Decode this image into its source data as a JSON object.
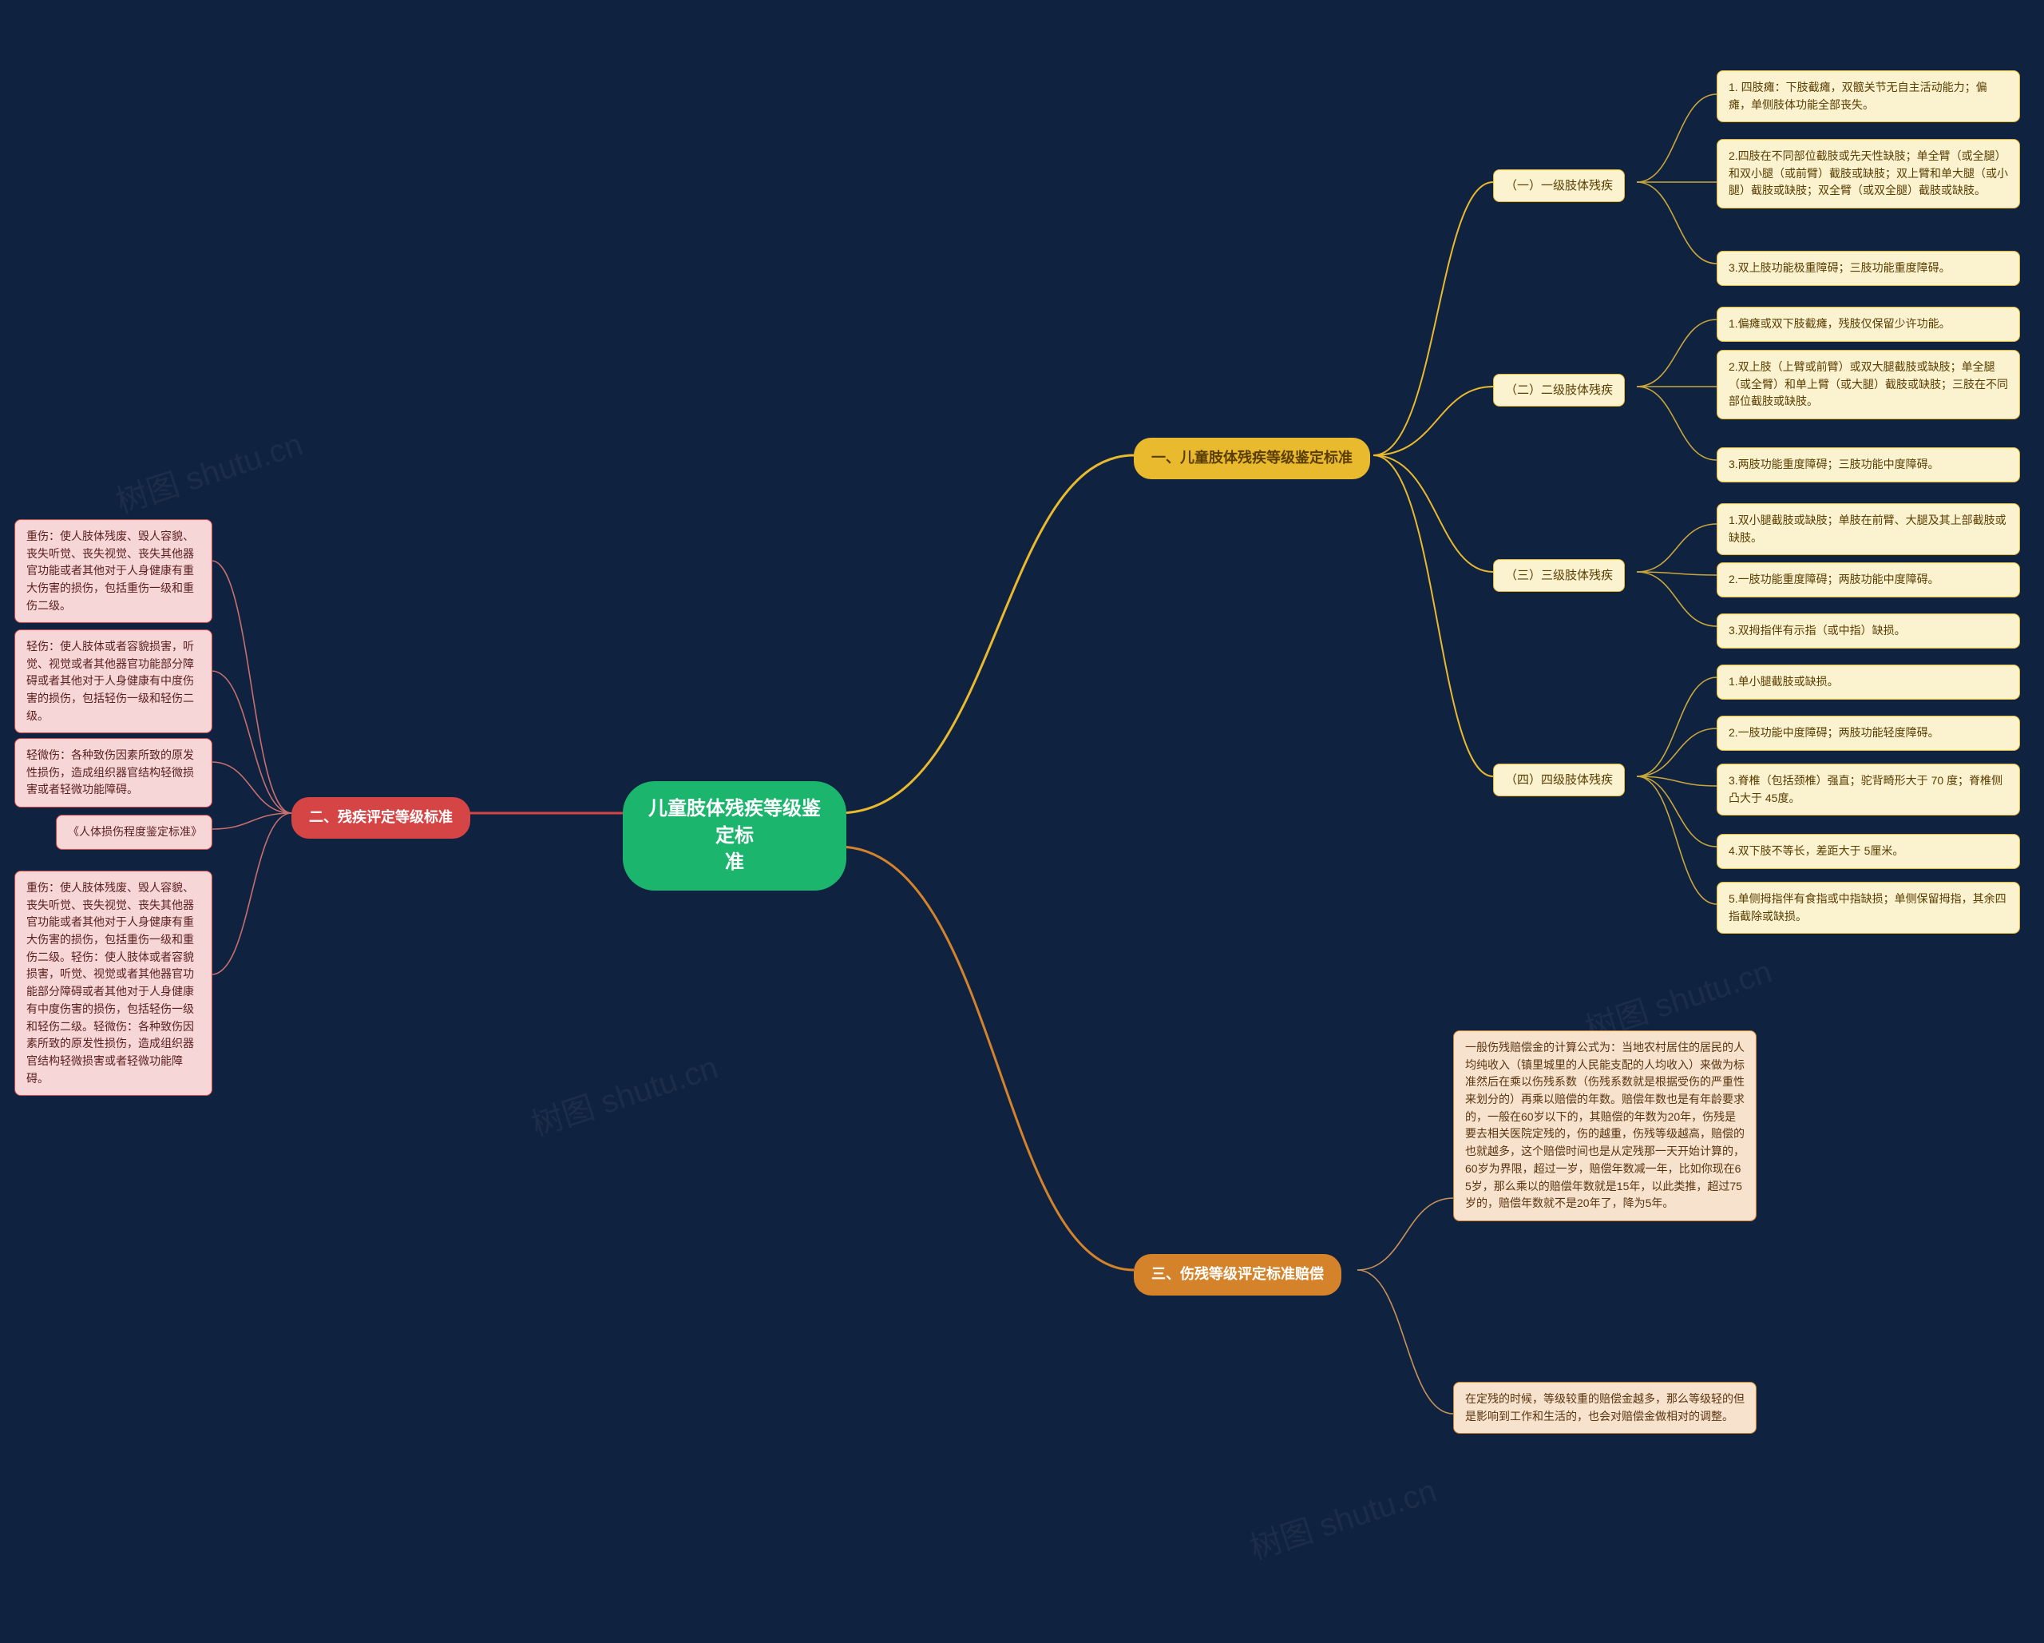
{
  "colors": {
    "background": "#0f2240",
    "root_bg": "#1bb56e",
    "root_text": "#ffffff",
    "sec1_bg": "#e9b92e",
    "sec1_text": "#5a3e00",
    "sec1_leaf_bg": "#fbf2d0",
    "sec1_leaf_border": "#e9b92e",
    "sec2_bg": "#d64545",
    "sec2_text": "#ffffff",
    "sec2_leaf_bg": "#f6d6d6",
    "sec2_leaf_border": "#d64545",
    "sec2_leaf_text": "#5a1f1f",
    "sec3_bg": "#d4832a",
    "sec3_text": "#ffffff",
    "sec3_leaf_bg": "#f7e3cd",
    "sec3_leaf_border": "#d4832a",
    "sec3_leaf_text": "#5a3410",
    "edge_yellow": "#e9b92e",
    "edge_red": "#d64545",
    "edge_orange": "#d4832a",
    "edge_leaf": "#c9a73a",
    "edge_leaf_red": "#c76f6f",
    "edge_leaf_orange": "#c99259"
  },
  "root": {
    "text": "儿童肢体残疾等级鉴定标\n准"
  },
  "sec1": {
    "title": "一、儿童肢体残疾等级鉴定标准",
    "g1": {
      "title": "（一）一级肢体残疾",
      "items": [
        "1. 四肢瘫：下肢截瘫，双髋关节无自主活动能力；偏瘫，单侧肢体功能全部丧失。",
        "2.四肢在不同部位截肢或先天性缺肢；单全臂（或全腿）和双小腿（或前臂）截肢或缺肢；双上臂和单大腿（或小腿）截肢或缺肢；双全臂（或双全腿）截肢或缺肢。",
        "3.双上肢功能极重障碍；三肢功能重度障碍。"
      ]
    },
    "g2": {
      "title": "（二）二级肢体残疾",
      "items": [
        "1.偏瘫或双下肢截瘫，残肢仅保留少许功能。",
        "2.双上肢（上臂或前臂）或双大腿截肢或缺肢；单全腿（或全臂）和单上臂（或大腿）截肢或缺肢；三肢在不同部位截肢或缺肢。",
        "3.两肢功能重度障碍；三肢功能中度障碍。"
      ]
    },
    "g3": {
      "title": "（三）三级肢体残疾",
      "items": [
        "1.双小腿截肢或缺肢；单肢在前臂、大腿及其上部截肢或缺肢。",
        "2.一肢功能重度障碍；两肢功能中度障碍。",
        "3.双拇指伴有示指（或中指）缺损。"
      ]
    },
    "g4": {
      "title": "（四）四级肢体残疾",
      "items": [
        "1.单小腿截肢或缺损。",
        "2.一肢功能中度障碍；两肢功能轻度障碍。",
        "3.脊椎（包括颈椎）强直；驼背畸形大于 70 度；脊椎侧凸大于 45度。",
        "4.双下肢不等长，差距大于 5厘米。",
        "5.单侧拇指伴有食指或中指缺损；单侧保留拇指，其余四指截除或缺损。"
      ]
    }
  },
  "sec2": {
    "title": "二、残疾评定等级标准",
    "items": [
      "重伤：使人肢体残废、毁人容貌、丧失听觉、丧失视觉、丧失其他器官功能或者其他对于人身健康有重大伤害的损伤，包括重伤一级和重伤二级。",
      "轻伤：使人肢体或者容貌损害，听觉、视觉或者其他器官功能部分障碍或者其他对于人身健康有中度伤害的损伤，包括轻伤一级和轻伤二级。",
      "轻微伤：各种致伤因素所致的原发性损伤，造成组织器官结构轻微损害或者轻微功能障碍。",
      "《人体损伤程度鉴定标准》",
      "重伤：使人肢体残废、毁人容貌、丧失听觉、丧失视觉、丧失其他器官功能或者其他对于人身健康有重大伤害的损伤，包括重伤一级和重伤二级。轻伤：使人肢体或者容貌损害，听觉、视觉或者其他器官功能部分障碍或者其他对于人身健康有中度伤害的损伤，包括轻伤一级和轻伤二级。轻微伤：各种致伤因素所致的原发性损伤，造成组织器官结构轻微损害或者轻微功能障碍。"
    ]
  },
  "sec3": {
    "title": "三、伤残等级评定标准赔偿",
    "items": [
      "一般伤残赔偿金的计算公式为：当地农村居住的居民的人均纯收入（镇里城里的人民能支配的人均收入）来做为标准然后在乘以伤残系数（伤残系数就是根据受伤的严重性来划分的）再乘以赔偿的年数。赔偿年数也是有年龄要求的，一般在60岁以下的，其赔偿的年数为20年，伤残是要去相关医院定残的，伤的越重，伤残等级越高，赔偿的也就越多，这个赔偿时间也是从定残那一天开始计算的，60岁为界限，超过一岁，赔偿年数减一年，比如你现在65岁，那么乘以的赔偿年数就是15年，以此类推，超过75岁的，赔偿年数就不是20年了，降为5年。",
      "在定残的时候，等级较重的赔偿金越多，那么等级轻的但是影响到工作和生活的，也会对赔偿金做相对的调整。"
    ]
  },
  "watermark": "树图 shutu.cn"
}
